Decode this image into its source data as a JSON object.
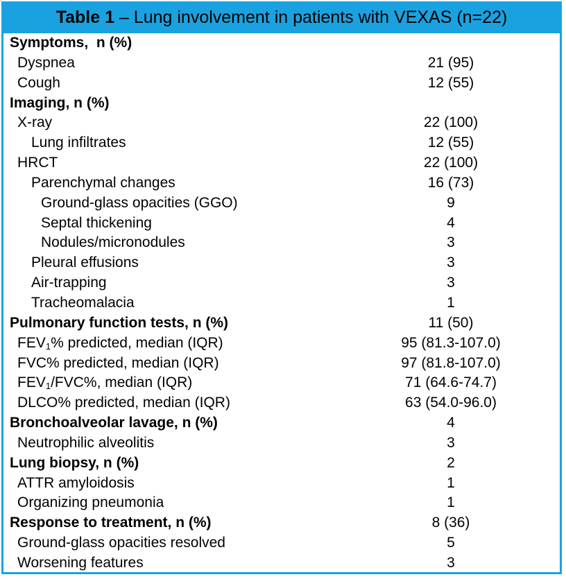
{
  "table": {
    "title_bold": "Table 1",
    "title_rest": " – Lung involvement in patients with VEXAS (n=22)",
    "rows": [
      {
        "label": "Symptoms,  n (%)",
        "value": "",
        "level": 0,
        "section": true
      },
      {
        "label": "Dyspnea",
        "value": "21 (95)",
        "level": 1,
        "section": false
      },
      {
        "label": "Cough",
        "value": "12 (55)",
        "level": 1,
        "section": false
      },
      {
        "label": "Imaging, n (%)",
        "value": "",
        "level": 0,
        "section": true
      },
      {
        "label": "X-ray",
        "value": "22 (100)",
        "level": 1,
        "section": false
      },
      {
        "label": "Lung infiltrates",
        "value": "12 (55)",
        "level": 2,
        "section": false
      },
      {
        "label": "HRCT",
        "value": "22 (100)",
        "level": 1,
        "section": false
      },
      {
        "label": "Parenchymal changes",
        "value": "16 (73)",
        "level": 2,
        "section": false
      },
      {
        "label": "Ground-glass opacities (GGO)",
        "value": "9",
        "level": 3,
        "section": false
      },
      {
        "label": "Septal thickening",
        "value": "4",
        "level": 3,
        "section": false
      },
      {
        "label": "Nodules/micronodules",
        "value": "3",
        "level": 3,
        "section": false
      },
      {
        "label": "Pleural effusions",
        "value": "3",
        "level": 2,
        "section": false
      },
      {
        "label": "Air-trapping",
        "value": "3",
        "level": 2,
        "section": false
      },
      {
        "label": "Tracheomalacia",
        "value": "1",
        "level": 2,
        "section": false
      },
      {
        "label": "Pulmonary function tests, n (%)",
        "value": "11 (50)",
        "level": 0,
        "section": true
      },
      {
        "label_pre": "FEV",
        "label_sub": "1",
        "label_post": "% predicted, median (IQR)",
        "value": "95 (81.3-107.0)",
        "level": 1,
        "section": false
      },
      {
        "label": "FVC% predicted, median (IQR)",
        "value": "97 (81.8-107.0)",
        "level": 1,
        "section": false
      },
      {
        "label_pre": "FEV",
        "label_sub": "1",
        "label_post": "/FVC%, median (IQR)",
        "value": "71 (64.6-74.7)",
        "level": 1,
        "section": false
      },
      {
        "label": "DLCO% predicted, median (IQR)",
        "value": "63 (54.0-96.0)",
        "level": 1,
        "section": false
      },
      {
        "label": "Bronchoalveolar lavage, n (%)",
        "value": "4",
        "level": 0,
        "section": true
      },
      {
        "label": "Neutrophilic alveolitis",
        "value": "3",
        "level": 1,
        "section": false
      },
      {
        "label": "Lung biopsy, n (%)",
        "value": "2",
        "level": 0,
        "section": true
      },
      {
        "label": "ATTR amyloidosis",
        "value": "1",
        "level": 1,
        "section": false
      },
      {
        "label": "Organizing pneumonia",
        "value": "1",
        "level": 1,
        "section": false
      },
      {
        "label": "Response to treatment, n (%)",
        "value": "8 (36)",
        "level": 0,
        "section": true
      },
      {
        "label": "Ground-glass opacities resolved",
        "value": "5",
        "level": 1,
        "section": false
      },
      {
        "label": "Worsening features",
        "value": "3",
        "level": 1,
        "section": false
      }
    ]
  },
  "colors": {
    "accent": "#1aa2e0"
  }
}
